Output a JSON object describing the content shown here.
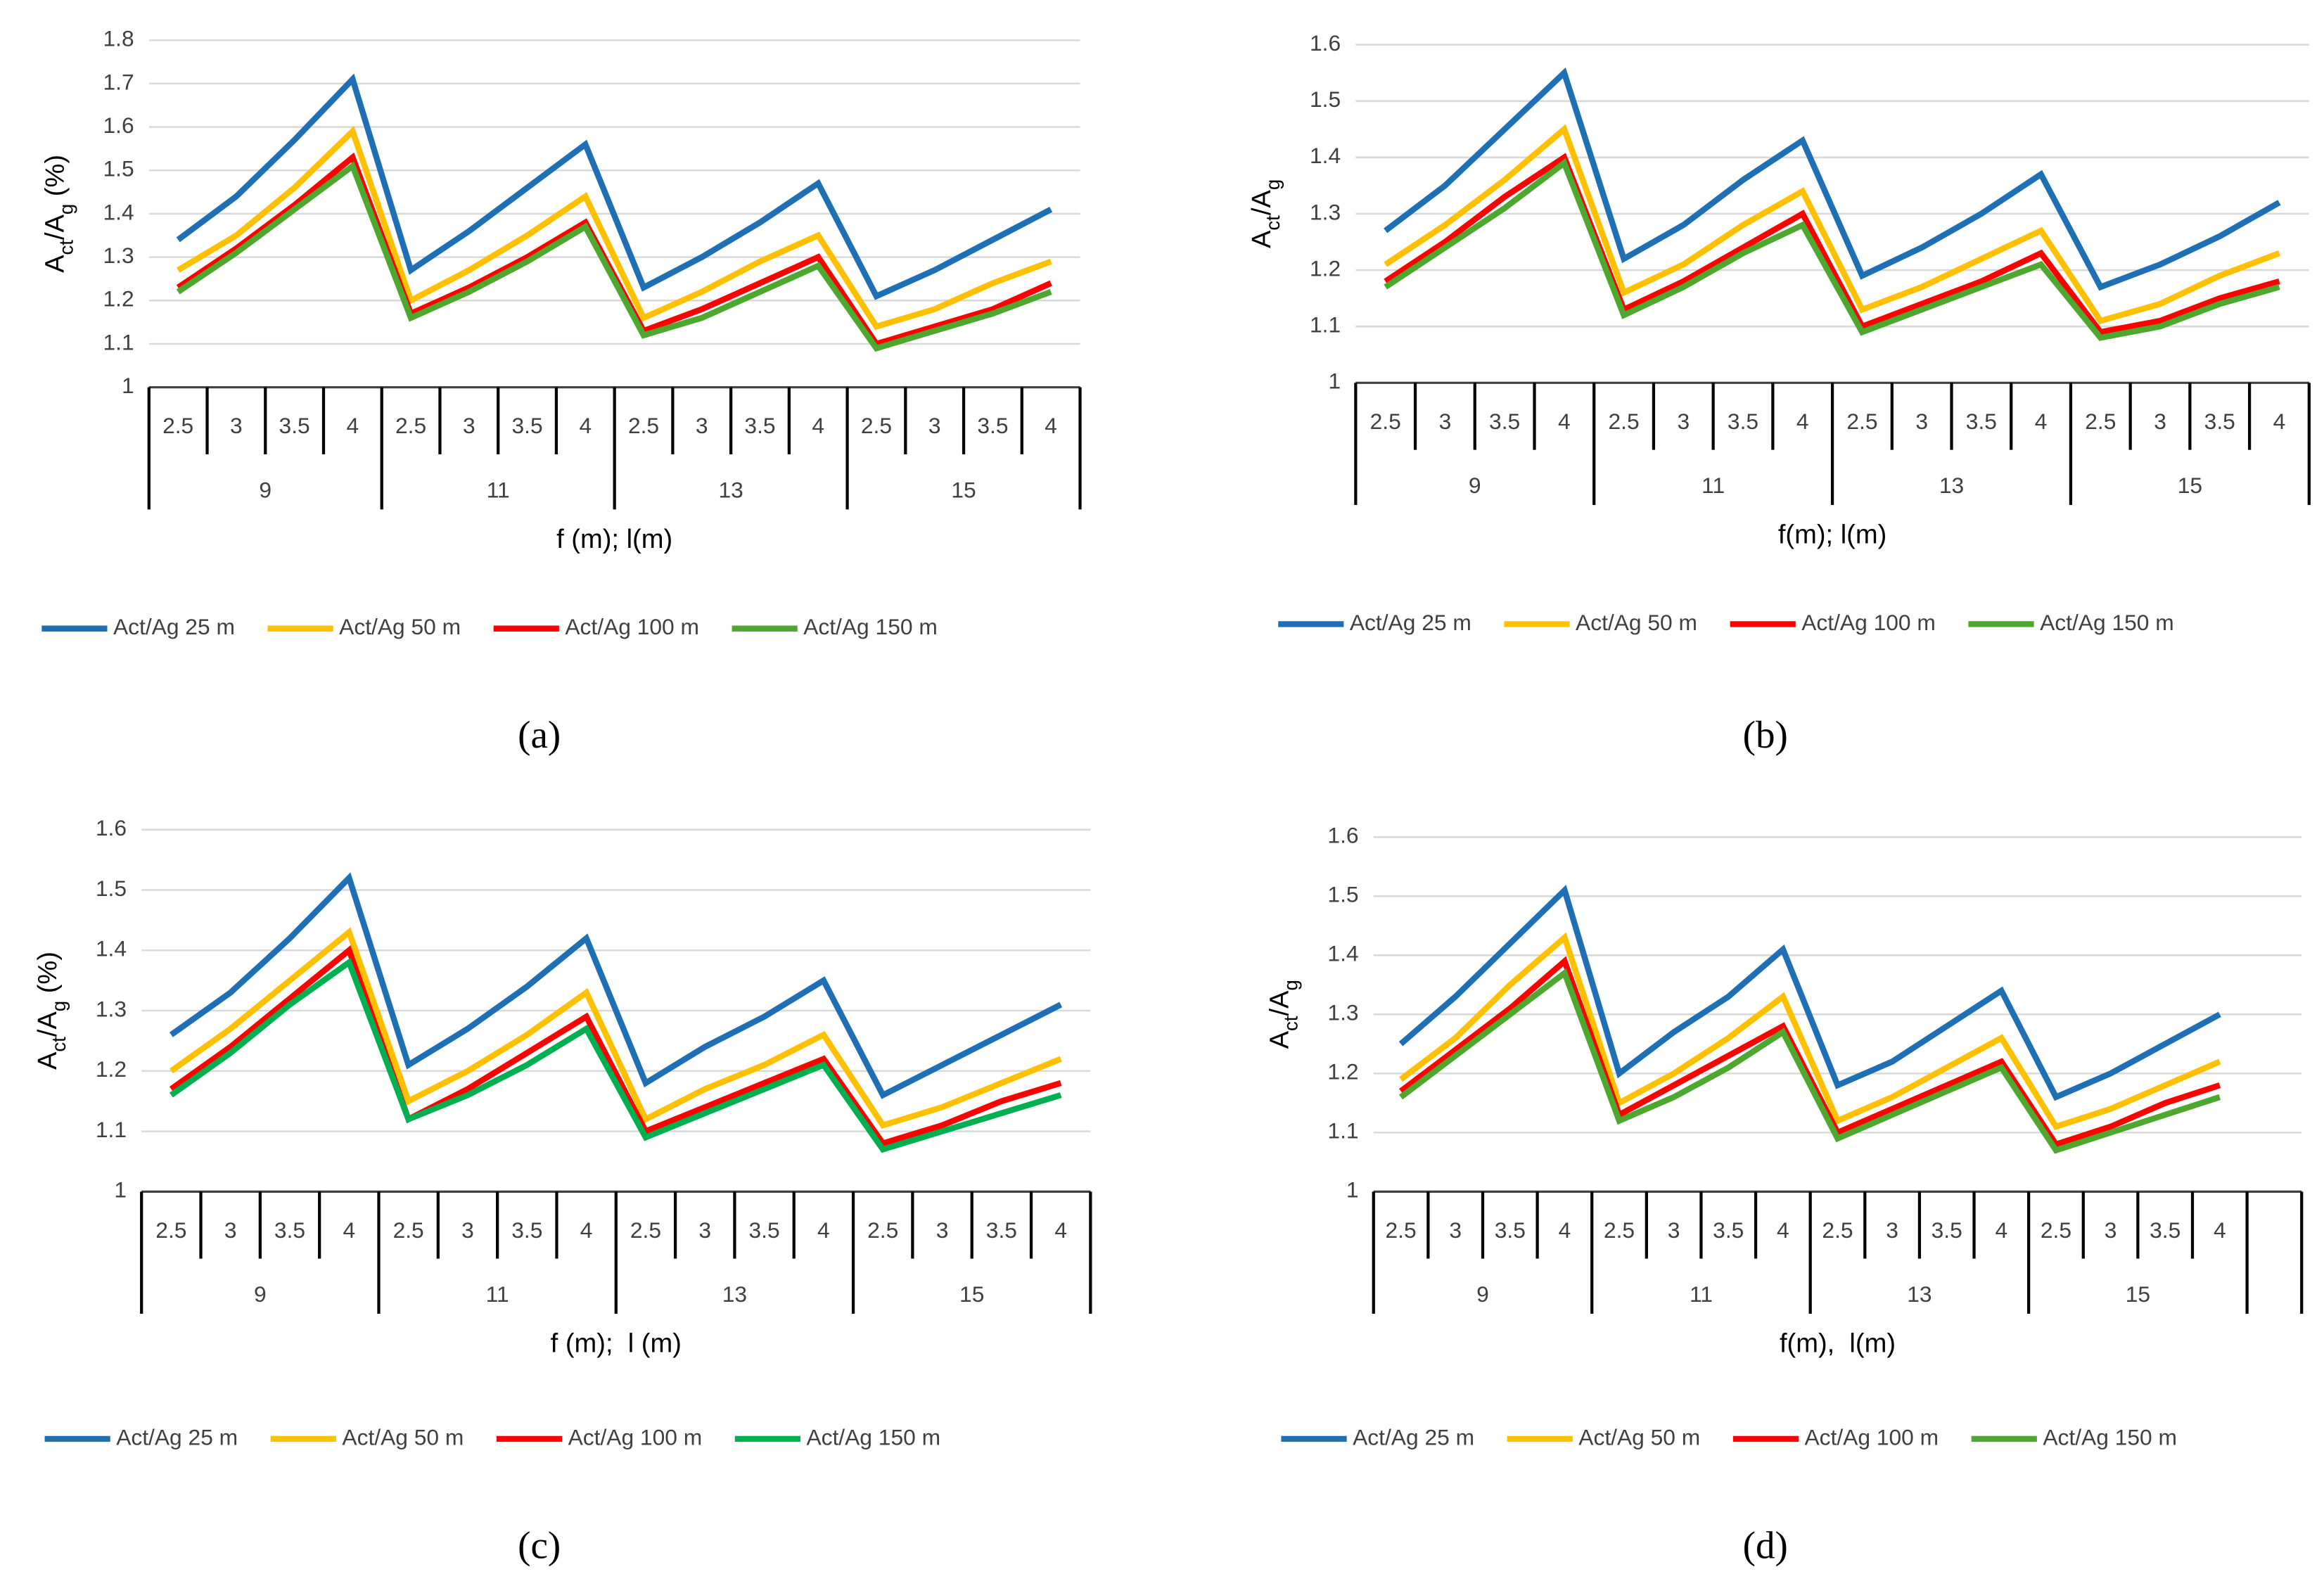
{
  "chart_data": [
    {
      "type": "line",
      "panel_label": "(a)",
      "ylabel": [
        "A",
        "ct",
        "/A",
        "g",
        " (%)"
      ],
      "xlabel": "f (m); l(m)",
      "categories": [
        "2.5",
        "3",
        "3.5",
        "4",
        "2.5",
        "3",
        "3.5",
        "4",
        "2.5",
        "3",
        "3.5",
        "4",
        "2.5",
        "3",
        "3.5",
        "4"
      ],
      "groups": [
        "9",
        "11",
        "13",
        "15"
      ],
      "ylim": [
        1,
        1.8
      ],
      "yticks": [
        1,
        1.1,
        1.2,
        1.3,
        1.4,
        1.5,
        1.6,
        1.7,
        1.8
      ],
      "grid": true,
      "series": [
        {
          "name": "Act/Ag 25 m",
          "color": "#1f6fb5",
          "values": [
            1.34,
            1.44,
            1.57,
            1.71,
            1.27,
            1.36,
            1.46,
            1.56,
            1.23,
            1.3,
            1.38,
            1.47,
            1.21,
            1.27,
            1.34,
            1.41
          ]
        },
        {
          "name": "Act/Ag 50 m",
          "color": "#ffc000",
          "values": [
            1.27,
            1.35,
            1.46,
            1.59,
            1.2,
            1.27,
            1.35,
            1.44,
            1.16,
            1.22,
            1.29,
            1.35,
            1.14,
            1.18,
            1.24,
            1.29
          ]
        },
        {
          "name": "Act/Ag 100 m",
          "color": "#ff0000",
          "values": [
            1.23,
            1.32,
            1.42,
            1.53,
            1.17,
            1.23,
            1.3,
            1.38,
            1.13,
            1.18,
            1.24,
            1.3,
            1.1,
            1.14,
            1.18,
            1.24
          ]
        },
        {
          "name": "Act/Ag 150 m",
          "color": "#4ea72e",
          "values": [
            1.22,
            1.31,
            1.41,
            1.51,
            1.16,
            1.22,
            1.29,
            1.37,
            1.12,
            1.16,
            1.22,
            1.28,
            1.09,
            1.13,
            1.17,
            1.22
          ]
        }
      ]
    },
    {
      "type": "line",
      "panel_label": "(b)",
      "ylabel": [
        "A",
        "ct",
        "/A",
        "g"
      ],
      "xlabel": "f(m); l(m)",
      "categories": [
        "2.5",
        "3",
        "3.5",
        "4",
        "2.5",
        "3",
        "3.5",
        "4",
        "2.5",
        "3",
        "3.5",
        "4",
        "2.5",
        "3",
        "3.5",
        "4"
      ],
      "groups": [
        "9",
        "11",
        "13",
        "15"
      ],
      "ylim": [
        1,
        1.6
      ],
      "yticks": [
        1,
        1.1,
        1.2,
        1.3,
        1.4,
        1.5,
        1.6
      ],
      "grid": true,
      "series": [
        {
          "name": "Act/Ag 25 m",
          "color": "#1f6fb5",
          "values": [
            1.27,
            1.35,
            1.45,
            1.55,
            1.22,
            1.28,
            1.36,
            1.43,
            1.19,
            1.24,
            1.3,
            1.37,
            1.17,
            1.21,
            1.26,
            1.32
          ]
        },
        {
          "name": "Act/Ag 50 m",
          "color": "#ffc000",
          "values": [
            1.21,
            1.28,
            1.36,
            1.45,
            1.16,
            1.21,
            1.28,
            1.34,
            1.13,
            1.17,
            1.22,
            1.27,
            1.11,
            1.14,
            1.19,
            1.23
          ]
        },
        {
          "name": "Act/Ag 100 m",
          "color": "#ff0000",
          "values": [
            1.18,
            1.25,
            1.33,
            1.4,
            1.13,
            1.18,
            1.24,
            1.3,
            1.1,
            1.14,
            1.18,
            1.23,
            1.09,
            1.11,
            1.15,
            1.18
          ]
        },
        {
          "name": "Act/Ag 150 m",
          "color": "#4ea72e",
          "values": [
            1.17,
            1.24,
            1.31,
            1.39,
            1.12,
            1.17,
            1.23,
            1.28,
            1.09,
            1.13,
            1.17,
            1.21,
            1.08,
            1.1,
            1.14,
            1.17
          ]
        }
      ]
    },
    {
      "type": "line",
      "panel_label": "(c)",
      "ylabel": [
        "A",
        "ct",
        "/A",
        "g",
        " (%)"
      ],
      "xlabel": "f (m);  l (m)",
      "categories": [
        "2.5",
        "3",
        "3.5",
        "4",
        "2.5",
        "3",
        "3.5",
        "4",
        "2.5",
        "3",
        "3.5",
        "4",
        "2.5",
        "3",
        "3.5",
        "4"
      ],
      "groups": [
        "9",
        "11",
        "13",
        "15"
      ],
      "ylim": [
        1,
        1.6
      ],
      "yticks": [
        1,
        1.1,
        1.2,
        1.3,
        1.4,
        1.5,
        1.6
      ],
      "grid": true,
      "series": [
        {
          "name": "Act/Ag 25 m",
          "color": "#1f6fb5",
          "values": [
            1.26,
            1.33,
            1.42,
            1.52,
            1.21,
            1.27,
            1.34,
            1.42,
            1.18,
            1.24,
            1.29,
            1.35,
            1.16,
            1.21,
            1.26,
            1.31
          ]
        },
        {
          "name": "Act/Ag 50 m",
          "color": "#ffc000",
          "values": [
            1.2,
            1.27,
            1.35,
            1.43,
            1.15,
            1.2,
            1.26,
            1.33,
            1.12,
            1.17,
            1.21,
            1.26,
            1.11,
            1.14,
            1.18,
            1.22
          ]
        },
        {
          "name": "Act/Ag 100 m",
          "color": "#ff0000",
          "values": [
            1.17,
            1.24,
            1.32,
            1.4,
            1.12,
            1.17,
            1.23,
            1.29,
            1.1,
            1.14,
            1.18,
            1.22,
            1.08,
            1.11,
            1.15,
            1.18
          ]
        },
        {
          "name": "Act/Ag 150 m",
          "color": "#00b050",
          "values": [
            1.16,
            1.23,
            1.31,
            1.38,
            1.12,
            1.16,
            1.21,
            1.27,
            1.09,
            1.13,
            1.17,
            1.21,
            1.07,
            1.1,
            1.13,
            1.16
          ]
        }
      ]
    },
    {
      "type": "line",
      "panel_label": "(d)",
      "ylabel": [
        "A",
        "ct",
        "/A",
        "g"
      ],
      "xlabel": "f(m),  l(m)",
      "categories": [
        "2.5",
        "3",
        "3.5",
        "4",
        "2.5",
        "3",
        "3.5",
        "4",
        "2.5",
        "3",
        "3.5",
        "4",
        "2.5",
        "3",
        "3.5",
        "4",
        null
      ],
      "groups": [
        "9",
        "11",
        "13",
        "15",
        null
      ],
      "ylim": [
        1,
        1.6
      ],
      "yticks": [
        1,
        1.1,
        1.2,
        1.3,
        1.4,
        1.5,
        1.6
      ],
      "grid": true,
      "series": [
        {
          "name": "Act/Ag 25 m",
          "color": "#1f6fb5",
          "values": [
            1.25,
            1.33,
            1.42,
            1.51,
            1.2,
            1.27,
            1.33,
            1.41,
            1.18,
            1.22,
            1.28,
            1.34,
            1.16,
            1.2,
            1.25,
            1.3,
            null
          ]
        },
        {
          "name": "Act/Ag 50 m",
          "color": "#ffc000",
          "values": [
            1.19,
            1.26,
            1.35,
            1.43,
            1.15,
            1.2,
            1.26,
            1.33,
            1.12,
            1.16,
            1.21,
            1.26,
            1.11,
            1.14,
            1.18,
            1.22,
            null
          ]
        },
        {
          "name": "Act/Ag 100 m",
          "color": "#ff0000",
          "values": [
            1.17,
            1.24,
            1.31,
            1.39,
            1.13,
            1.18,
            1.23,
            1.28,
            1.1,
            1.14,
            1.18,
            1.22,
            1.08,
            1.11,
            1.15,
            1.18,
            null
          ]
        },
        {
          "name": "Act/Ag 150 m",
          "color": "#4ea72e",
          "values": [
            1.16,
            1.23,
            1.3,
            1.37,
            1.12,
            1.16,
            1.21,
            1.27,
            1.09,
            1.13,
            1.17,
            1.21,
            1.07,
            1.1,
            1.13,
            1.16,
            null
          ]
        }
      ]
    }
  ]
}
